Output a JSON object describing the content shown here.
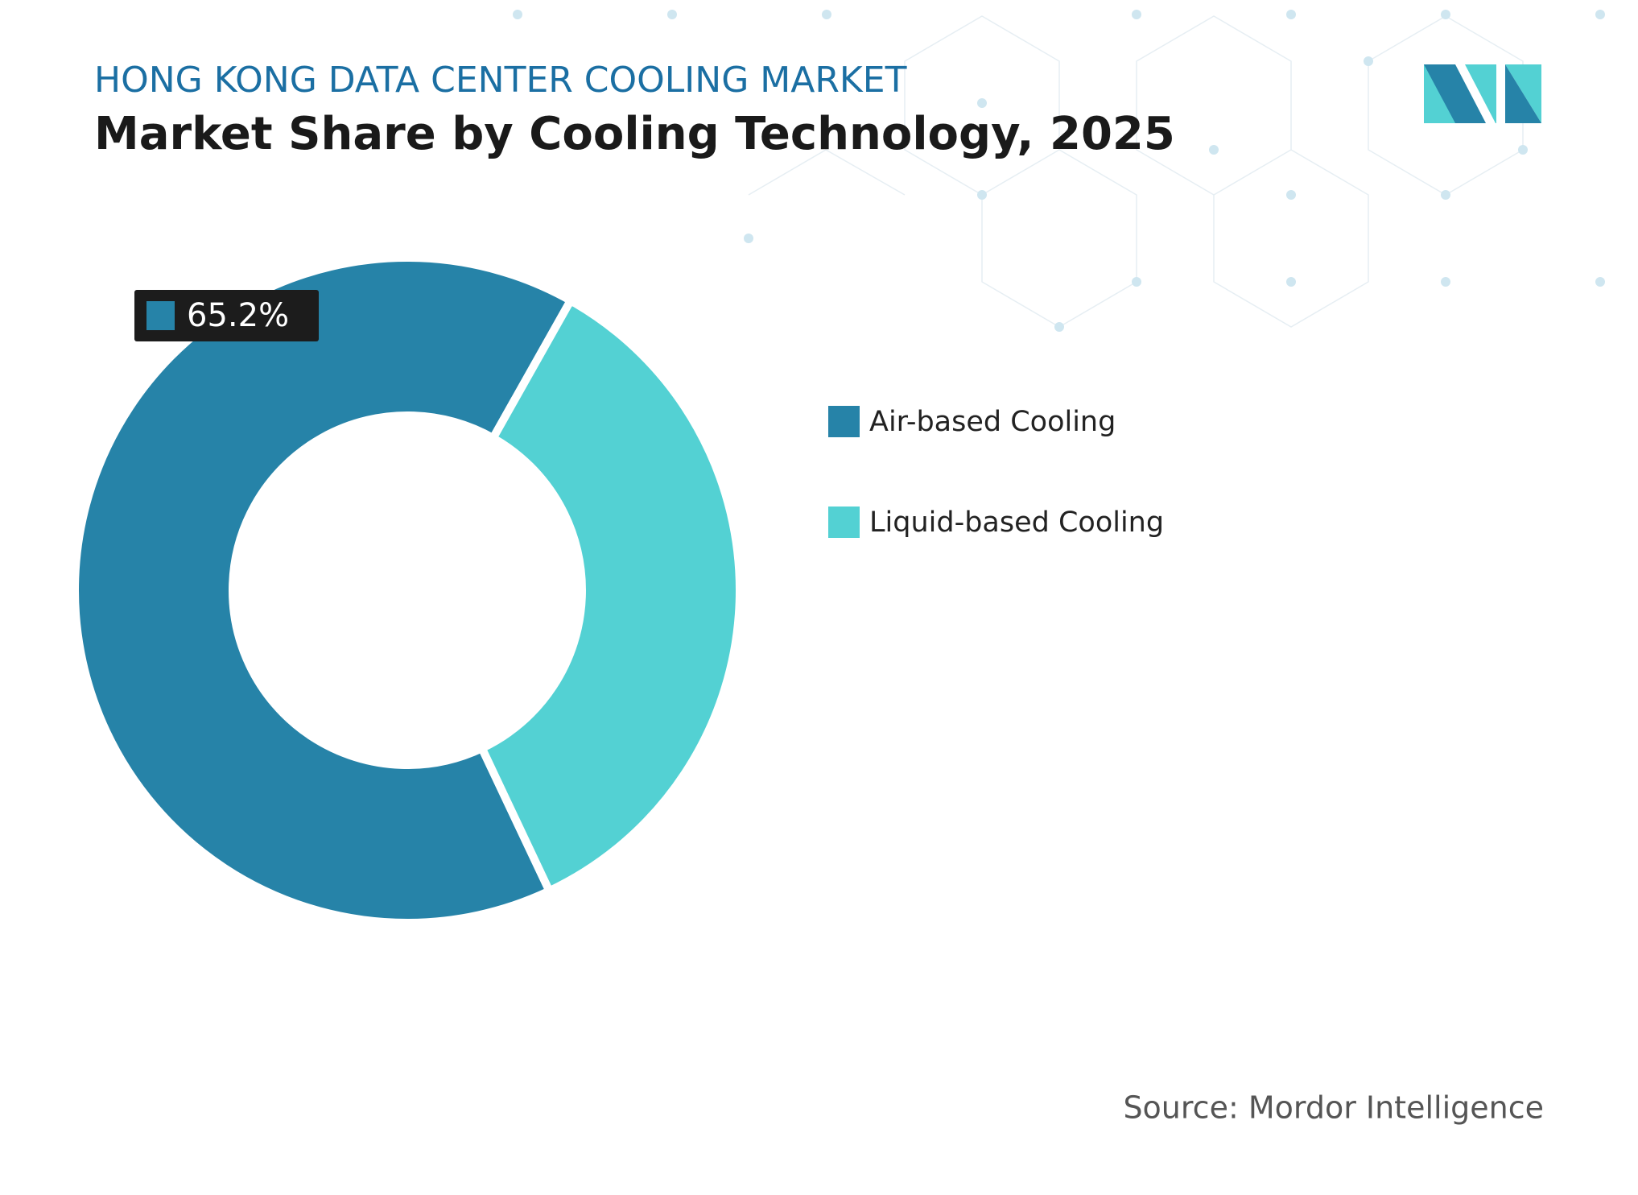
{
  "chart_data": {
    "type": "donut",
    "subtitle": "HONG KONG DATA CENTER COOLING MARKET",
    "title": "Market Share by Cooling Technology, 2025",
    "categories": [
      "Air-based Cooling",
      "Liquid-based Cooling"
    ],
    "values": [
      65.2,
      34.8
    ],
    "value_labels": [
      "65.2%",
      null
    ],
    "colors": [
      "#2683a8",
      "#53d1d3"
    ],
    "legend": "right",
    "source": "Source: Mordor Intelligence"
  }
}
